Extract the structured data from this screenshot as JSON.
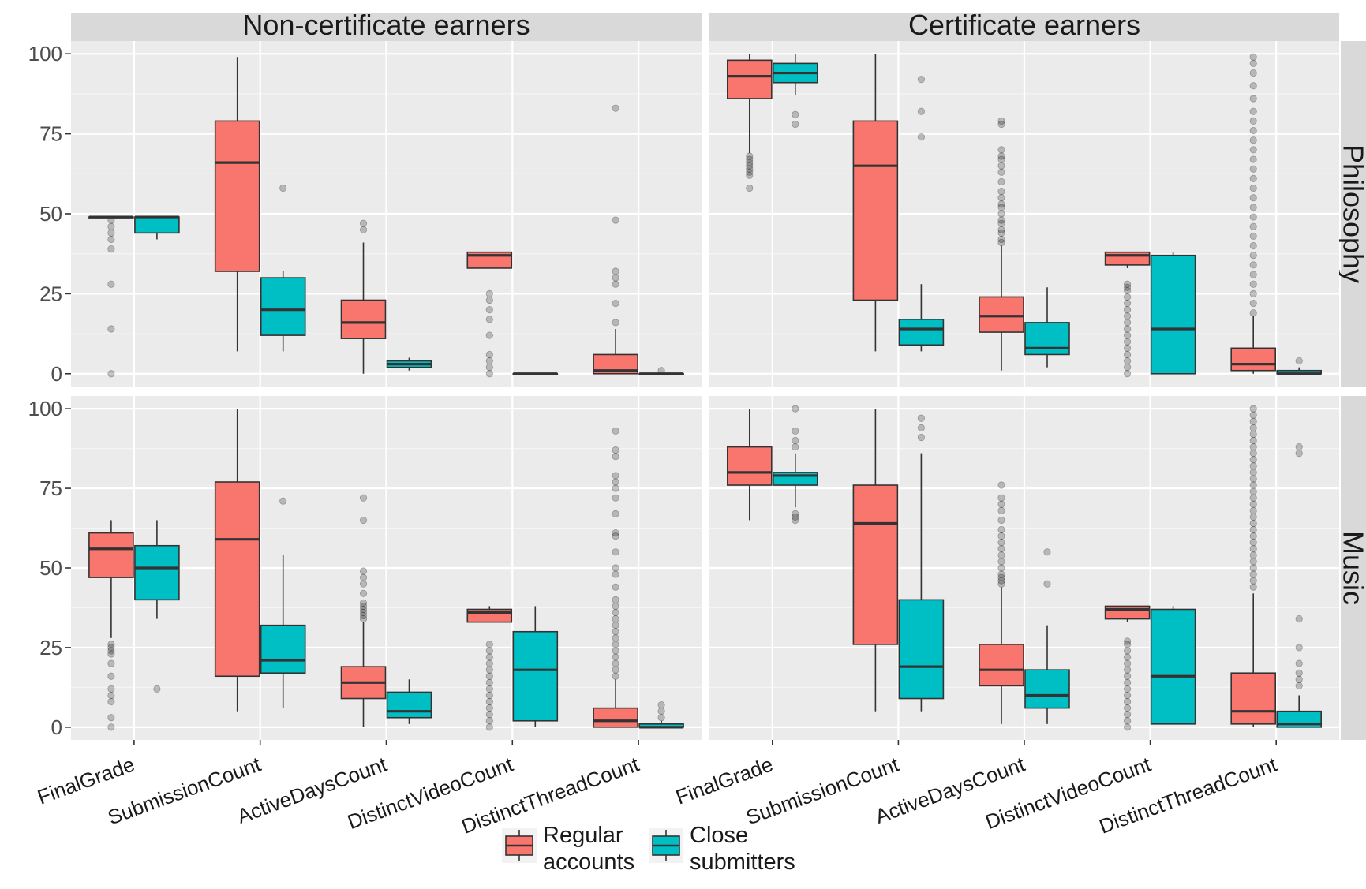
{
  "chart_data": {
    "type": "box",
    "column_facets": [
      "Non-certificate earners",
      "Certificate earners"
    ],
    "row_facets": [
      "Philosophy",
      "Music"
    ],
    "categories": [
      "FinalGrade",
      "SubmissionCount",
      "ActiveDaysCount",
      "DistinctVideoCount",
      "DistinctThreadCount"
    ],
    "y_ticks": [
      0,
      25,
      50,
      75,
      100
    ],
    "ylim": [
      -4,
      104
    ],
    "grid": true,
    "legend_position": "bottom",
    "legend": [
      {
        "key": "regular",
        "label_lines": [
          "Regular",
          "accounts"
        ],
        "color": "#F8766D"
      },
      {
        "key": "close",
        "label_lines": [
          "Close",
          "submitters"
        ],
        "color": "#00BFC4"
      }
    ],
    "panels": [
      {
        "row": "Philosophy",
        "column": "Non-certificate earners",
        "series": {
          "regular": [
            {
              "min": 49,
              "q1": 49,
              "median": 49,
              "q3": 49,
              "max": 49,
              "outliers": [
                0,
                14,
                28,
                39,
                42,
                44,
                46,
                48
              ]
            },
            {
              "min": 7,
              "q1": 32,
              "median": 66,
              "q3": 79,
              "max": 99,
              "outliers": []
            },
            {
              "min": 0,
              "q1": 11,
              "median": 16,
              "q3": 23,
              "max": 41,
              "outliers": [
                45,
                47
              ]
            },
            {
              "min": 33,
              "q1": 33,
              "median": 37,
              "q3": 38,
              "max": 38,
              "outliers": [
                0,
                2,
                4,
                6,
                12,
                17,
                20,
                23,
                25
              ]
            },
            {
              "min": 0,
              "q1": 0,
              "median": 1,
              "q3": 6,
              "max": 14,
              "outliers": [
                16,
                22,
                28,
                30,
                32,
                48,
                83
              ]
            }
          ],
          "close": [
            {
              "min": 42,
              "q1": 44,
              "median": 49,
              "q3": 49,
              "max": 49,
              "outliers": []
            },
            {
              "min": 7,
              "q1": 12,
              "median": 20,
              "q3": 30,
              "max": 32,
              "outliers": [
                58
              ]
            },
            {
              "min": 1,
              "q1": 2,
              "median": 3,
              "q3": 4,
              "max": 5,
              "outliers": []
            },
            {
              "min": 0,
              "q1": 0,
              "median": 0,
              "q3": 0,
              "max": 0,
              "outliers": []
            },
            {
              "min": 0,
              "q1": 0,
              "median": 0,
              "q3": 0,
              "max": 0,
              "outliers": [
                1
              ]
            }
          ]
        }
      },
      {
        "row": "Philosophy",
        "column": "Certificate earners",
        "series": {
          "regular": [
            {
              "min": 69,
              "q1": 86,
              "median": 93,
              "q3": 98,
              "max": 100,
              "outliers": [
                58,
                62,
                63,
                64,
                65,
                66,
                67,
                68
              ]
            },
            {
              "min": 7,
              "q1": 23,
              "median": 65,
              "q3": 79,
              "max": 100,
              "outliers": []
            },
            {
              "min": 1,
              "q1": 13,
              "median": 18,
              "q3": 24,
              "max": 40,
              "outliers": [
                41,
                42,
                44,
                45,
                47,
                48,
                50,
                52,
                53,
                55,
                57,
                60,
                63,
                65,
                67,
                68,
                70,
                78,
                79
              ]
            },
            {
              "min": 33,
              "q1": 34,
              "median": 37,
              "q3": 38,
              "max": 38,
              "outliers": [
                0,
                2,
                4,
                6,
                8,
                10,
                12,
                14,
                16,
                18,
                20,
                22,
                24,
                26,
                27,
                28
              ]
            },
            {
              "min": 0,
              "q1": 1,
              "median": 3,
              "q3": 8,
              "max": 18,
              "outliers": [
                19,
                22,
                25,
                28,
                31,
                34,
                37,
                40,
                43,
                46,
                49,
                52,
                55,
                58,
                61,
                64,
                67,
                70,
                73,
                76,
                79,
                82,
                86,
                90,
                94,
                97,
                99
              ]
            }
          ],
          "close": [
            {
              "min": 87,
              "q1": 91,
              "median": 94,
              "q3": 97,
              "max": 100,
              "outliers": [
                78,
                81
              ]
            },
            {
              "min": 7,
              "q1": 9,
              "median": 14,
              "q3": 17,
              "max": 28,
              "outliers": [
                74,
                82,
                92
              ]
            },
            {
              "min": 2,
              "q1": 6,
              "median": 8,
              "q3": 16,
              "max": 27,
              "outliers": []
            },
            {
              "min": 0,
              "q1": 0,
              "median": 14,
              "q3": 37,
              "max": 38,
              "outliers": []
            },
            {
              "min": 0,
              "q1": 0,
              "median": 0,
              "q3": 1,
              "max": 2,
              "outliers": [
                4
              ]
            }
          ]
        }
      },
      {
        "row": "Music",
        "column": "Non-certificate earners",
        "series": {
          "regular": [
            {
              "min": 28,
              "q1": 47,
              "median": 56,
              "q3": 61,
              "max": 65,
              "outliers": [
                0,
                3,
                8,
                10,
                12,
                16,
                20,
                23,
                24,
                25,
                26
              ]
            },
            {
              "min": 5,
              "q1": 16,
              "median": 59,
              "q3": 77,
              "max": 100,
              "outliers": []
            },
            {
              "min": 0,
              "q1": 9,
              "median": 14,
              "q3": 19,
              "max": 33,
              "outliers": [
                34,
                35,
                36,
                37,
                38,
                39,
                42,
                45,
                47,
                49,
                65,
                72
              ]
            },
            {
              "min": 33,
              "q1": 33,
              "median": 36,
              "q3": 37,
              "max": 38,
              "outliers": [
                0,
                2,
                4,
                6,
                8,
                10,
                12,
                14,
                16,
                18,
                20,
                22,
                24,
                26
              ]
            },
            {
              "min": 0,
              "q1": 0,
              "median": 2,
              "q3": 6,
              "max": 15,
              "outliers": [
                16,
                18,
                20,
                22,
                24,
                26,
                28,
                30,
                32,
                34,
                36,
                38,
                40,
                44,
                48,
                50,
                55,
                60,
                61,
                67,
                72,
                75,
                77,
                79,
                85,
                87,
                93
              ]
            }
          ],
          "close": [
            {
              "min": 34,
              "q1": 40,
              "median": 50,
              "q3": 57,
              "max": 65,
              "outliers": [
                12
              ]
            },
            {
              "min": 6,
              "q1": 17,
              "median": 21,
              "q3": 32,
              "max": 54,
              "outliers": [
                71
              ]
            },
            {
              "min": 1,
              "q1": 3,
              "median": 5,
              "q3": 11,
              "max": 15,
              "outliers": []
            },
            {
              "min": 0,
              "q1": 2,
              "median": 18,
              "q3": 30,
              "max": 38,
              "outliers": []
            },
            {
              "min": 0,
              "q1": 0,
              "median": 0,
              "q3": 1,
              "max": 2,
              "outliers": [
                3,
                5,
                7
              ]
            }
          ]
        }
      },
      {
        "row": "Music",
        "column": "Certificate earners",
        "series": {
          "regular": [
            {
              "min": 65,
              "q1": 76,
              "median": 80,
              "q3": 88,
              "max": 100,
              "outliers": []
            },
            {
              "min": 5,
              "q1": 26,
              "median": 64,
              "q3": 76,
              "max": 100,
              "outliers": []
            },
            {
              "min": 1,
              "q1": 13,
              "median": 18,
              "q3": 26,
              "max": 44,
              "outliers": [
                45,
                46,
                47,
                48,
                50,
                52,
                54,
                56,
                58,
                60,
                62,
                65,
                68,
                70,
                72,
                76
              ]
            },
            {
              "min": 33,
              "q1": 34,
              "median": 37,
              "q3": 38,
              "max": 38,
              "outliers": [
                0,
                2,
                4,
                6,
                8,
                10,
                12,
                14,
                16,
                18,
                20,
                22,
                24,
                26,
                27
              ]
            },
            {
              "min": 0,
              "q1": 1,
              "median": 5,
              "q3": 17,
              "max": 42,
              "outliers": [
                44,
                46,
                48,
                50,
                52,
                54,
                56,
                58,
                60,
                62,
                64,
                66,
                68,
                70,
                72,
                74,
                76,
                78,
                80,
                82,
                84,
                86,
                88,
                90,
                92,
                94,
                96,
                98,
                100
              ]
            }
          ],
          "close": [
            {
              "min": 69,
              "q1": 76,
              "median": 79,
              "q3": 80,
              "max": 86,
              "outliers": [
                65,
                66,
                67,
                88,
                90,
                93,
                100
              ]
            },
            {
              "min": 5,
              "q1": 9,
              "median": 19,
              "q3": 40,
              "max": 86,
              "outliers": [
                91,
                94,
                97
              ]
            },
            {
              "min": 1,
              "q1": 6,
              "median": 10,
              "q3": 18,
              "max": 32,
              "outliers": [
                45,
                55
              ]
            },
            {
              "min": 1,
              "q1": 1,
              "median": 16,
              "q3": 37,
              "max": 38,
              "outliers": []
            },
            {
              "min": 0,
              "q1": 0,
              "median": 1,
              "q3": 5,
              "max": 10,
              "outliers": [
                13,
                15,
                17,
                20,
                25,
                34,
                86,
                88
              ]
            }
          ]
        }
      }
    ]
  }
}
